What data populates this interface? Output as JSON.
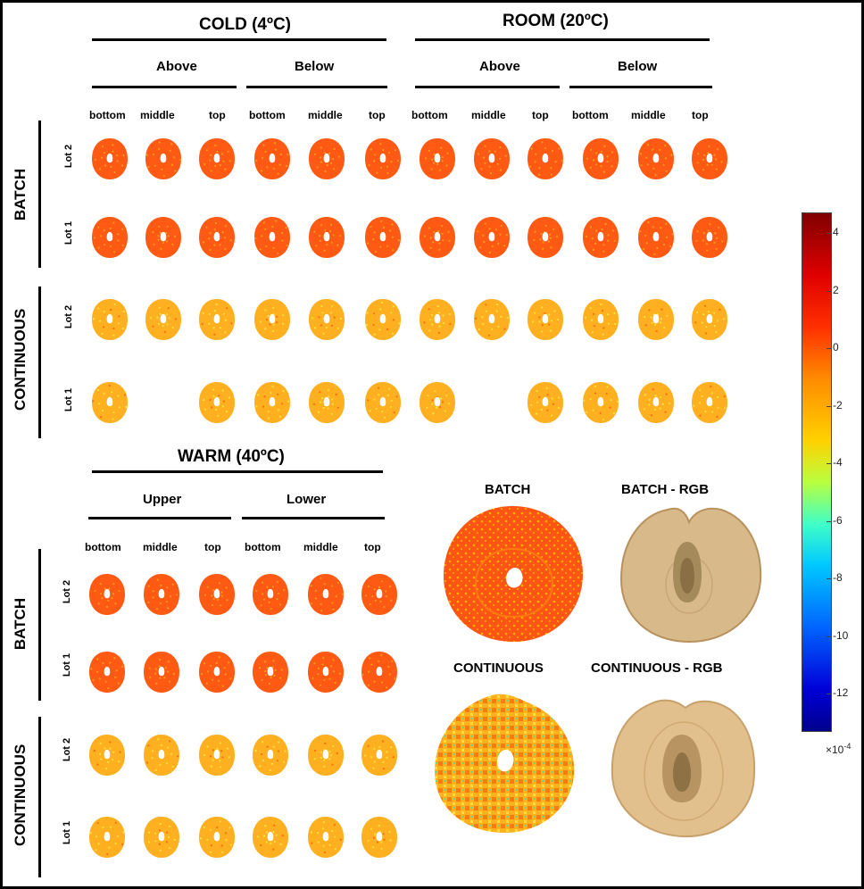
{
  "sections": {
    "cold": "COLD (4ºC)",
    "room": "ROOM (20ºC)",
    "warm": "WARM (40ºC)"
  },
  "subheaders": {
    "above": "Above",
    "below": "Below",
    "upper": "Upper",
    "lower": "Lower"
  },
  "positions": {
    "bottom": "bottom",
    "middle": "middle",
    "top": "top"
  },
  "lots": {
    "lot1": "Lot 1",
    "lot2": "Lot 2"
  },
  "groups": {
    "batch": "BATCH",
    "continuous": "CONTINUOUS"
  },
  "examples": {
    "batch": "BATCH",
    "batch_rgb": "BATCH - RGB",
    "continuous": "CONTINUOUS",
    "continuous_rgb": "CONTINUOUS - RGB"
  },
  "colorbar": {
    "ticks": [
      "4",
      "2",
      "0",
      "-2",
      "-4",
      "-6",
      "-8",
      "-10",
      "-12"
    ],
    "multiplier": "×10",
    "exponent": "-4",
    "colors": [
      "#800000",
      "#ff0000",
      "#ff8c00",
      "#ffd200",
      "#40ffc8",
      "#00c8ff",
      "#0000d8"
    ]
  },
  "colors": {
    "batch_fill": "#ff5a14",
    "continuous_fill": "#ffb020",
    "rgb_fill": "#d9bb8c"
  }
}
